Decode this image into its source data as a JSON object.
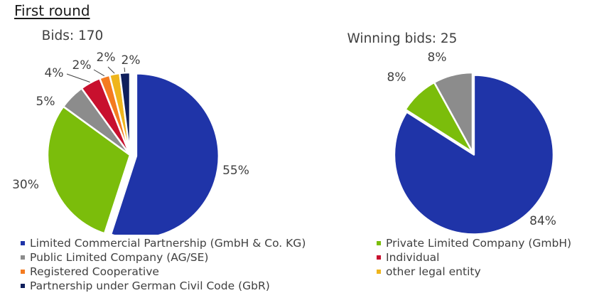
{
  "page": {
    "title": "First round"
  },
  "chart_data": [
    {
      "type": "pie",
      "title": "Bids: 170",
      "categories": [
        "Limited Commercial Partnership (GmbH & Co. KG)",
        "Private Limited Company (GmbH)",
        "Public Limited Company (AG/SE)",
        "Individual",
        "Registered Cooperative",
        "other legal entity",
        "Partnership under German Civil Code (GbR)"
      ],
      "values": [
        55,
        30,
        5,
        4,
        2,
        2,
        2
      ],
      "value_labels": [
        "55%",
        "30%",
        "5%",
        "4%",
        "2%",
        "2%",
        "2%"
      ],
      "exploded": true
    },
    {
      "type": "pie",
      "title": "Winning bids: 25",
      "categories": [
        "Limited Commercial Partnership (GmbH & Co. KG)",
        "Private Limited Company (GmbH)",
        "Public Limited Company (AG/SE)"
      ],
      "values": [
        84,
        8,
        8
      ],
      "value_labels": [
        "84%",
        "8%",
        "8%"
      ],
      "exploded": true
    }
  ],
  "legend": {
    "items": [
      {
        "label": "Limited Commercial Partnership (GmbH & Co. KG)",
        "color": "#1f34a8"
      },
      {
        "label": "Private Limited Company (GmbH)",
        "color": "#7bbd0b"
      },
      {
        "label": "Public Limited Company (AG/SE)",
        "color": "#8c8c8c"
      },
      {
        "label": "Individual",
        "color": "#c8102e"
      },
      {
        "label": "Registered Cooperative",
        "color": "#f47b20"
      },
      {
        "label": "other legal entity",
        "color": "#efb51c"
      },
      {
        "label": "Partnership under German Civil Code (GbR)",
        "color": "#0f1f5c"
      }
    ]
  }
}
